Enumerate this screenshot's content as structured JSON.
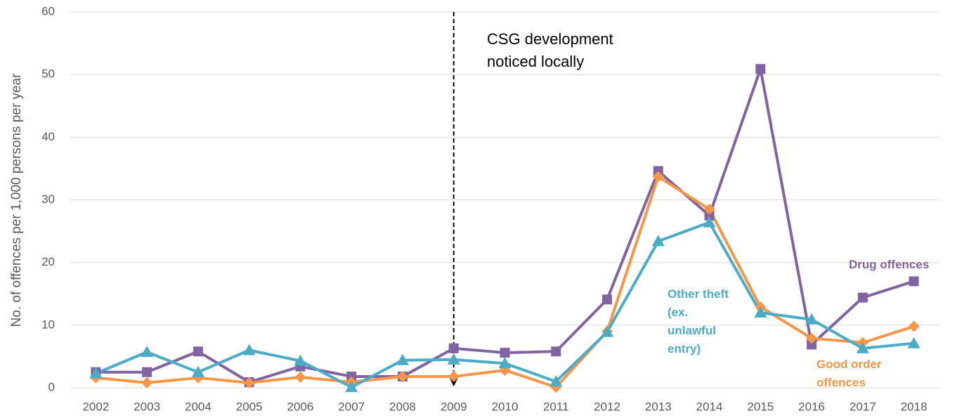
{
  "chart_data": {
    "type": "line",
    "y_axis_label": "No. of offences per 1,000 persons per year",
    "annotation": "CSG development noticed locally",
    "categories": [
      "2002",
      "2003",
      "2004",
      "2005",
      "2006",
      "2007",
      "2008",
      "2009",
      "2010",
      "2011",
      "2012",
      "2013",
      "2014",
      "2015",
      "2016",
      "2017",
      "2018"
    ],
    "series": [
      {
        "name": "Drug offences",
        "color": "#8064a2",
        "marker": "square",
        "values": [
          2.5,
          2.5,
          5.8,
          0.9,
          3.4,
          1.8,
          1.8,
          6.3,
          5.6,
          5.8,
          14.1,
          34.6,
          27.5,
          50.9,
          6.9,
          14.4,
          17.0
        ]
      },
      {
        "name": "Good order offences",
        "color": "#f79646",
        "marker": "diamond",
        "values": [
          1.6,
          0.8,
          1.6,
          0.8,
          1.7,
          0.9,
          1.8,
          1.8,
          2.8,
          0.1,
          9.0,
          33.7,
          28.5,
          12.9,
          7.9,
          7.2,
          9.8
        ]
      },
      {
        "name": "Other theft (ex. unlawful entry)",
        "color": "#4bacc6",
        "marker": "triangle",
        "values": [
          2.3,
          5.7,
          2.5,
          6.0,
          4.3,
          0.1,
          4.4,
          4.5,
          3.9,
          1.0,
          8.9,
          23.4,
          26.4,
          12.0,
          10.9,
          6.3,
          7.1
        ]
      }
    ],
    "ylim": [
      0,
      60
    ],
    "yticks": [
      0,
      10,
      20,
      30,
      40,
      50,
      60
    ],
    "grid": true
  }
}
